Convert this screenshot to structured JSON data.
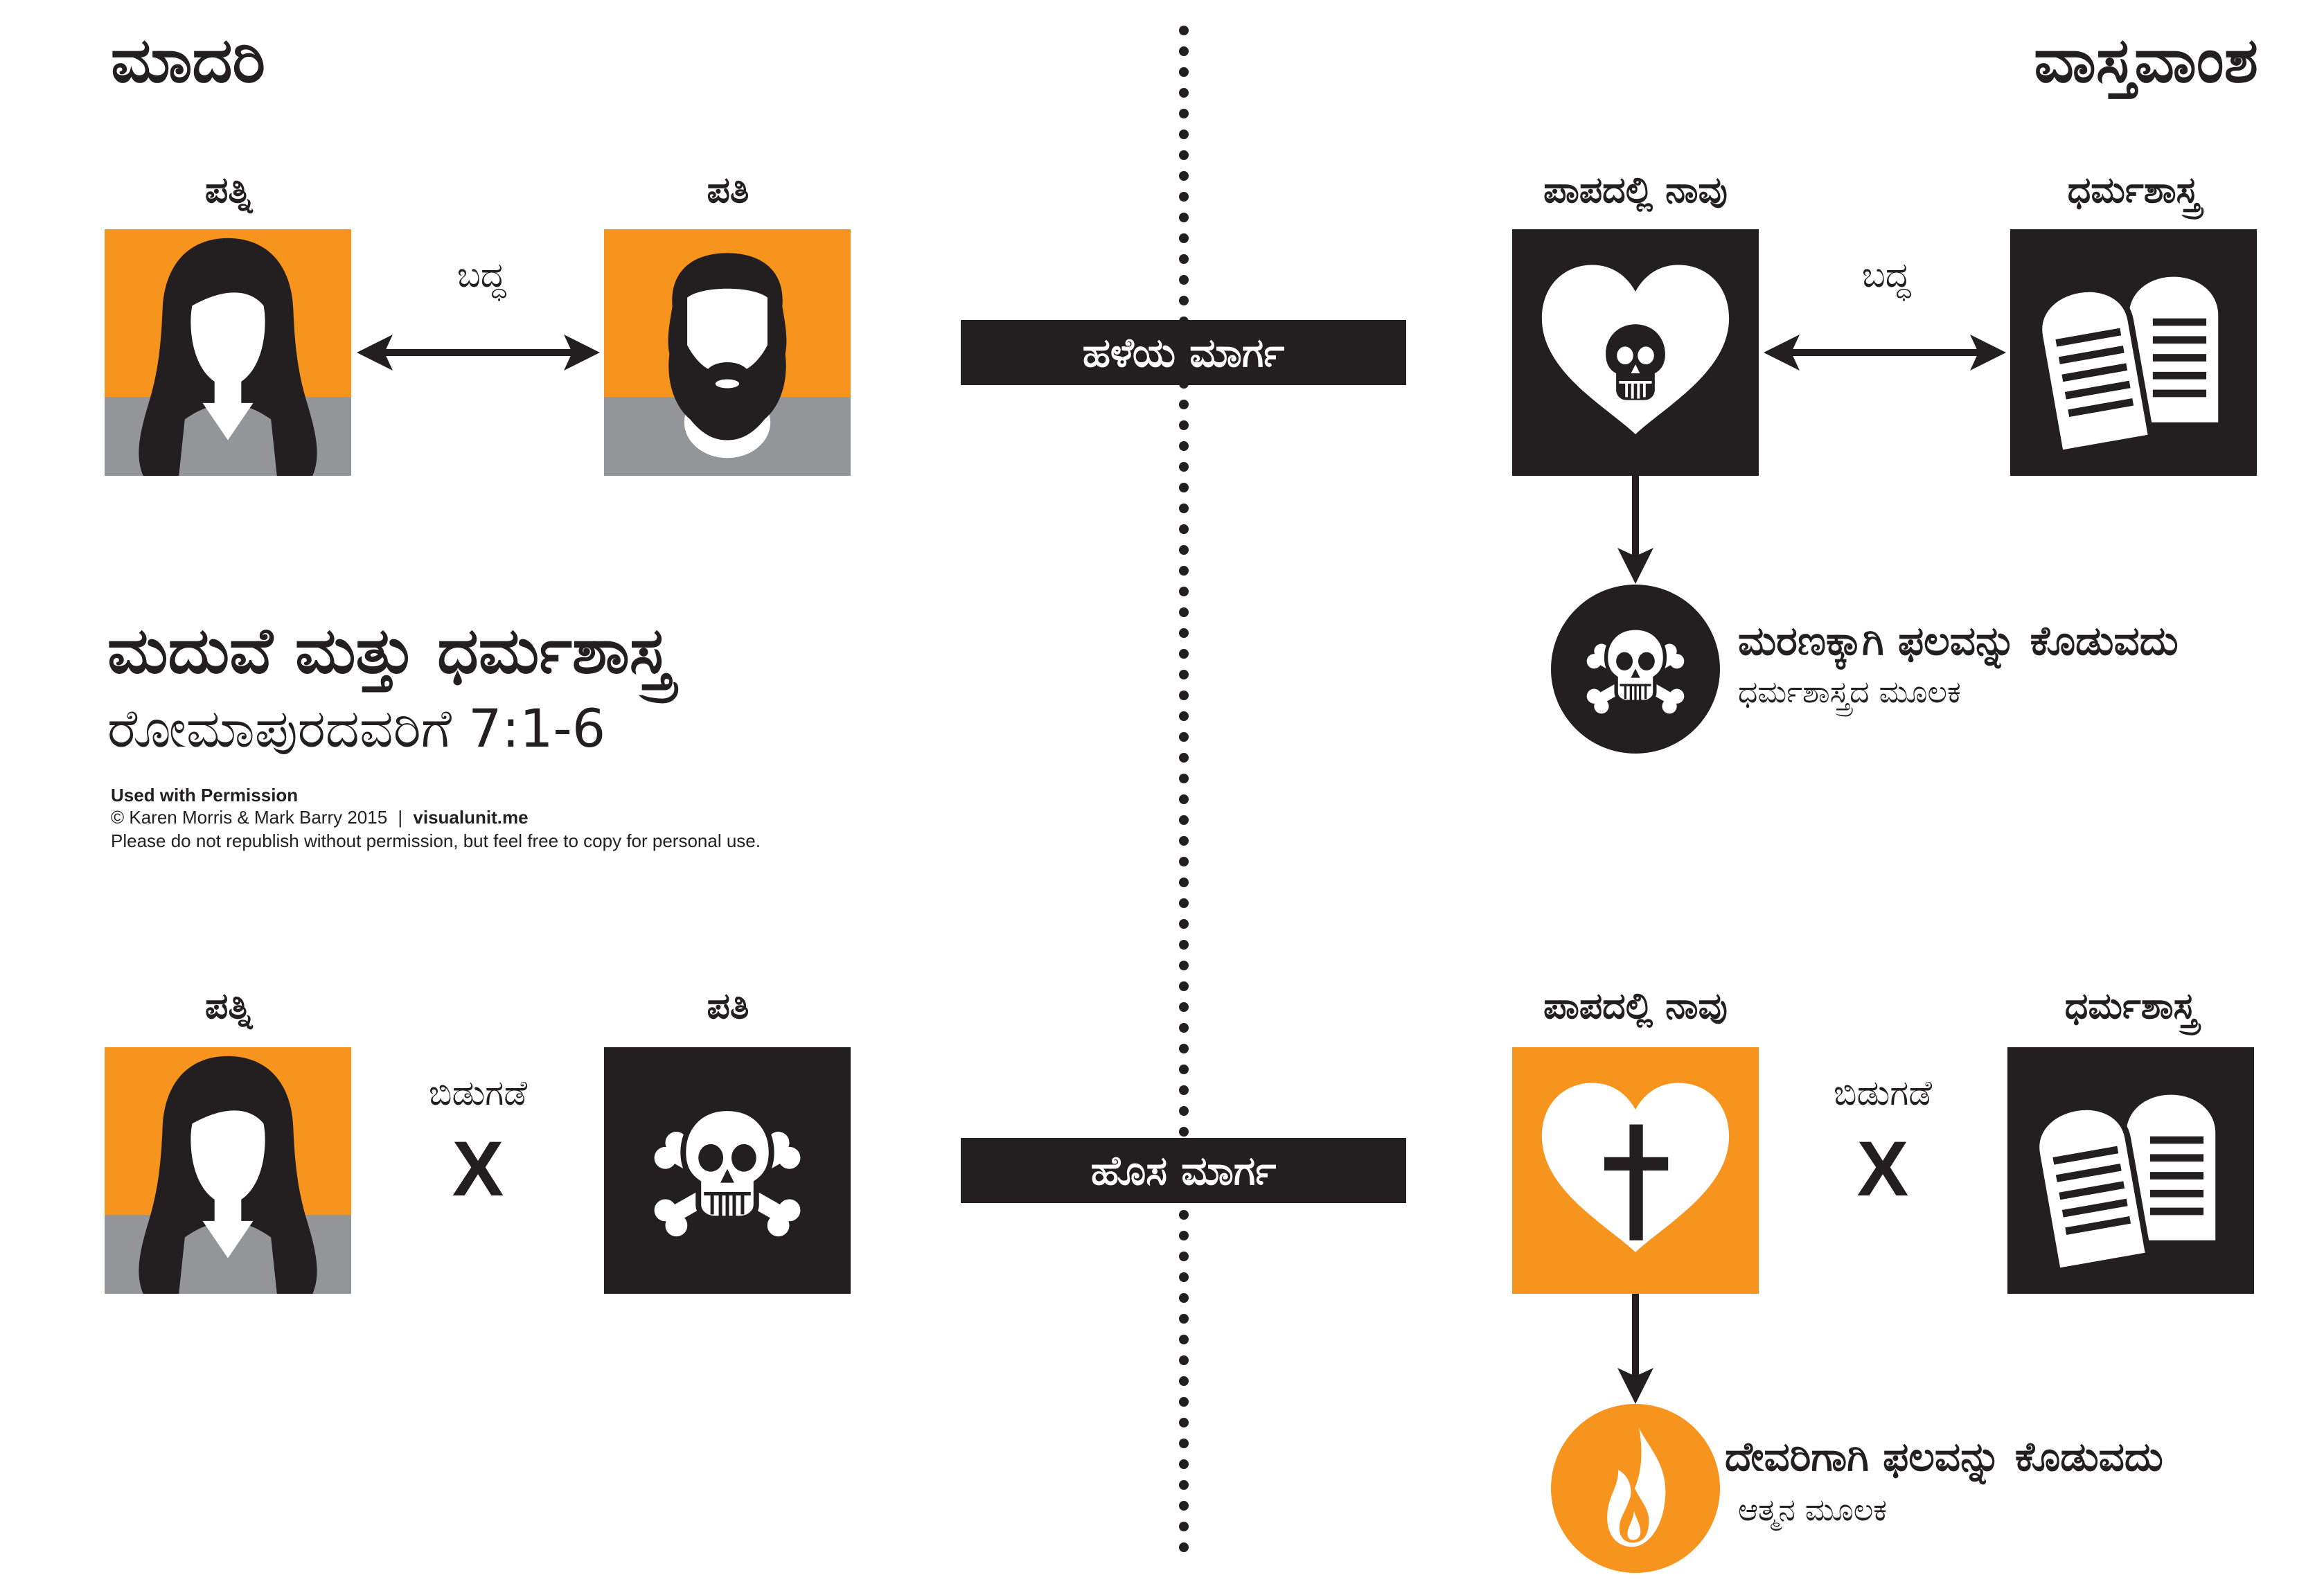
{
  "colors": {
    "orange": "#F7941D",
    "gray": "#939598",
    "black": "#231F20",
    "white": "#FFFFFF"
  },
  "model": {
    "title": "ಮಾದರಿ",
    "old_way": {
      "wife_label": "ಪತ್ನಿ",
      "husband_label": "ಪತಿ",
      "relation_label": "ಬದ್ಧ",
      "wife_icon": "woman-silhouette-icon",
      "husband_icon": "bearded-man-icon"
    },
    "new_way": {
      "wife_label": "ಪತ್ನಿ",
      "husband_label": "ಪತಿ",
      "relation_label": "ಬಿಡುಗಡೆ",
      "relation_marker": "X",
      "wife_icon": "woman-silhouette-icon",
      "husband_icon": "skull-crossbones-icon"
    }
  },
  "reality": {
    "title": "ವಾಸ್ತವಾಂಶ",
    "old_way": {
      "sinner_label": "ಪಾಪದಲ್ಲಿ ನಾವು",
      "law_label": "ಧರ್ಮಶಾಸ್ತ್ರ",
      "relation_label": "ಬದ್ಧ",
      "result_line1": "ಮರಣಕ್ಕಾಗಿ ಫಲವನ್ನು ಕೊಡುವದು",
      "result_line2": "ಧರ್ಮಶಾಸ್ತ್ರದ ಮೂಲಕ",
      "sinner_icon": "heart-skull-icon",
      "law_icon": "law-tablets-icon",
      "result_icon": "skull-crossbones-icon"
    },
    "new_way": {
      "sinner_label": "ಪಾಪದಲ್ಲಿ ನಾವು",
      "law_label": "ಧರ್ಮಶಾಸ್ತ್ರ",
      "relation_label": "ಬಿಡುಗಡೆ",
      "relation_marker": "X",
      "result_line1": "ದೇವರಿಗಾಗಿ ಫಲವನ್ನು ಕೊಡುವದು",
      "result_line2": "ಆತ್ಮನ ಮೂಲಕ",
      "sinner_icon": "heart-cross-icon",
      "law_icon": "law-tablets-icon",
      "result_icon": "flame-icon"
    }
  },
  "banners": {
    "old_way": "ಹಳೆಯ ಮಾರ್ಗ",
    "new_way": "ಹೊಸ ಮಾರ್ಗ"
  },
  "heading": {
    "title": "ಮದುವೆ ಮತ್ತು ಧರ್ಮಶಾಸ್ತ್ರ",
    "reference": "ರೋಮಾಪುರದವರಿಗೆ 7:1-6"
  },
  "credits": {
    "permission": "Used with Permission",
    "copyright": "© Karen Morris & Mark Barry 2015",
    "separator": "|",
    "website": "visualunit.me",
    "notice": "Please do not republish without permission, but feel free to copy for personal use."
  }
}
